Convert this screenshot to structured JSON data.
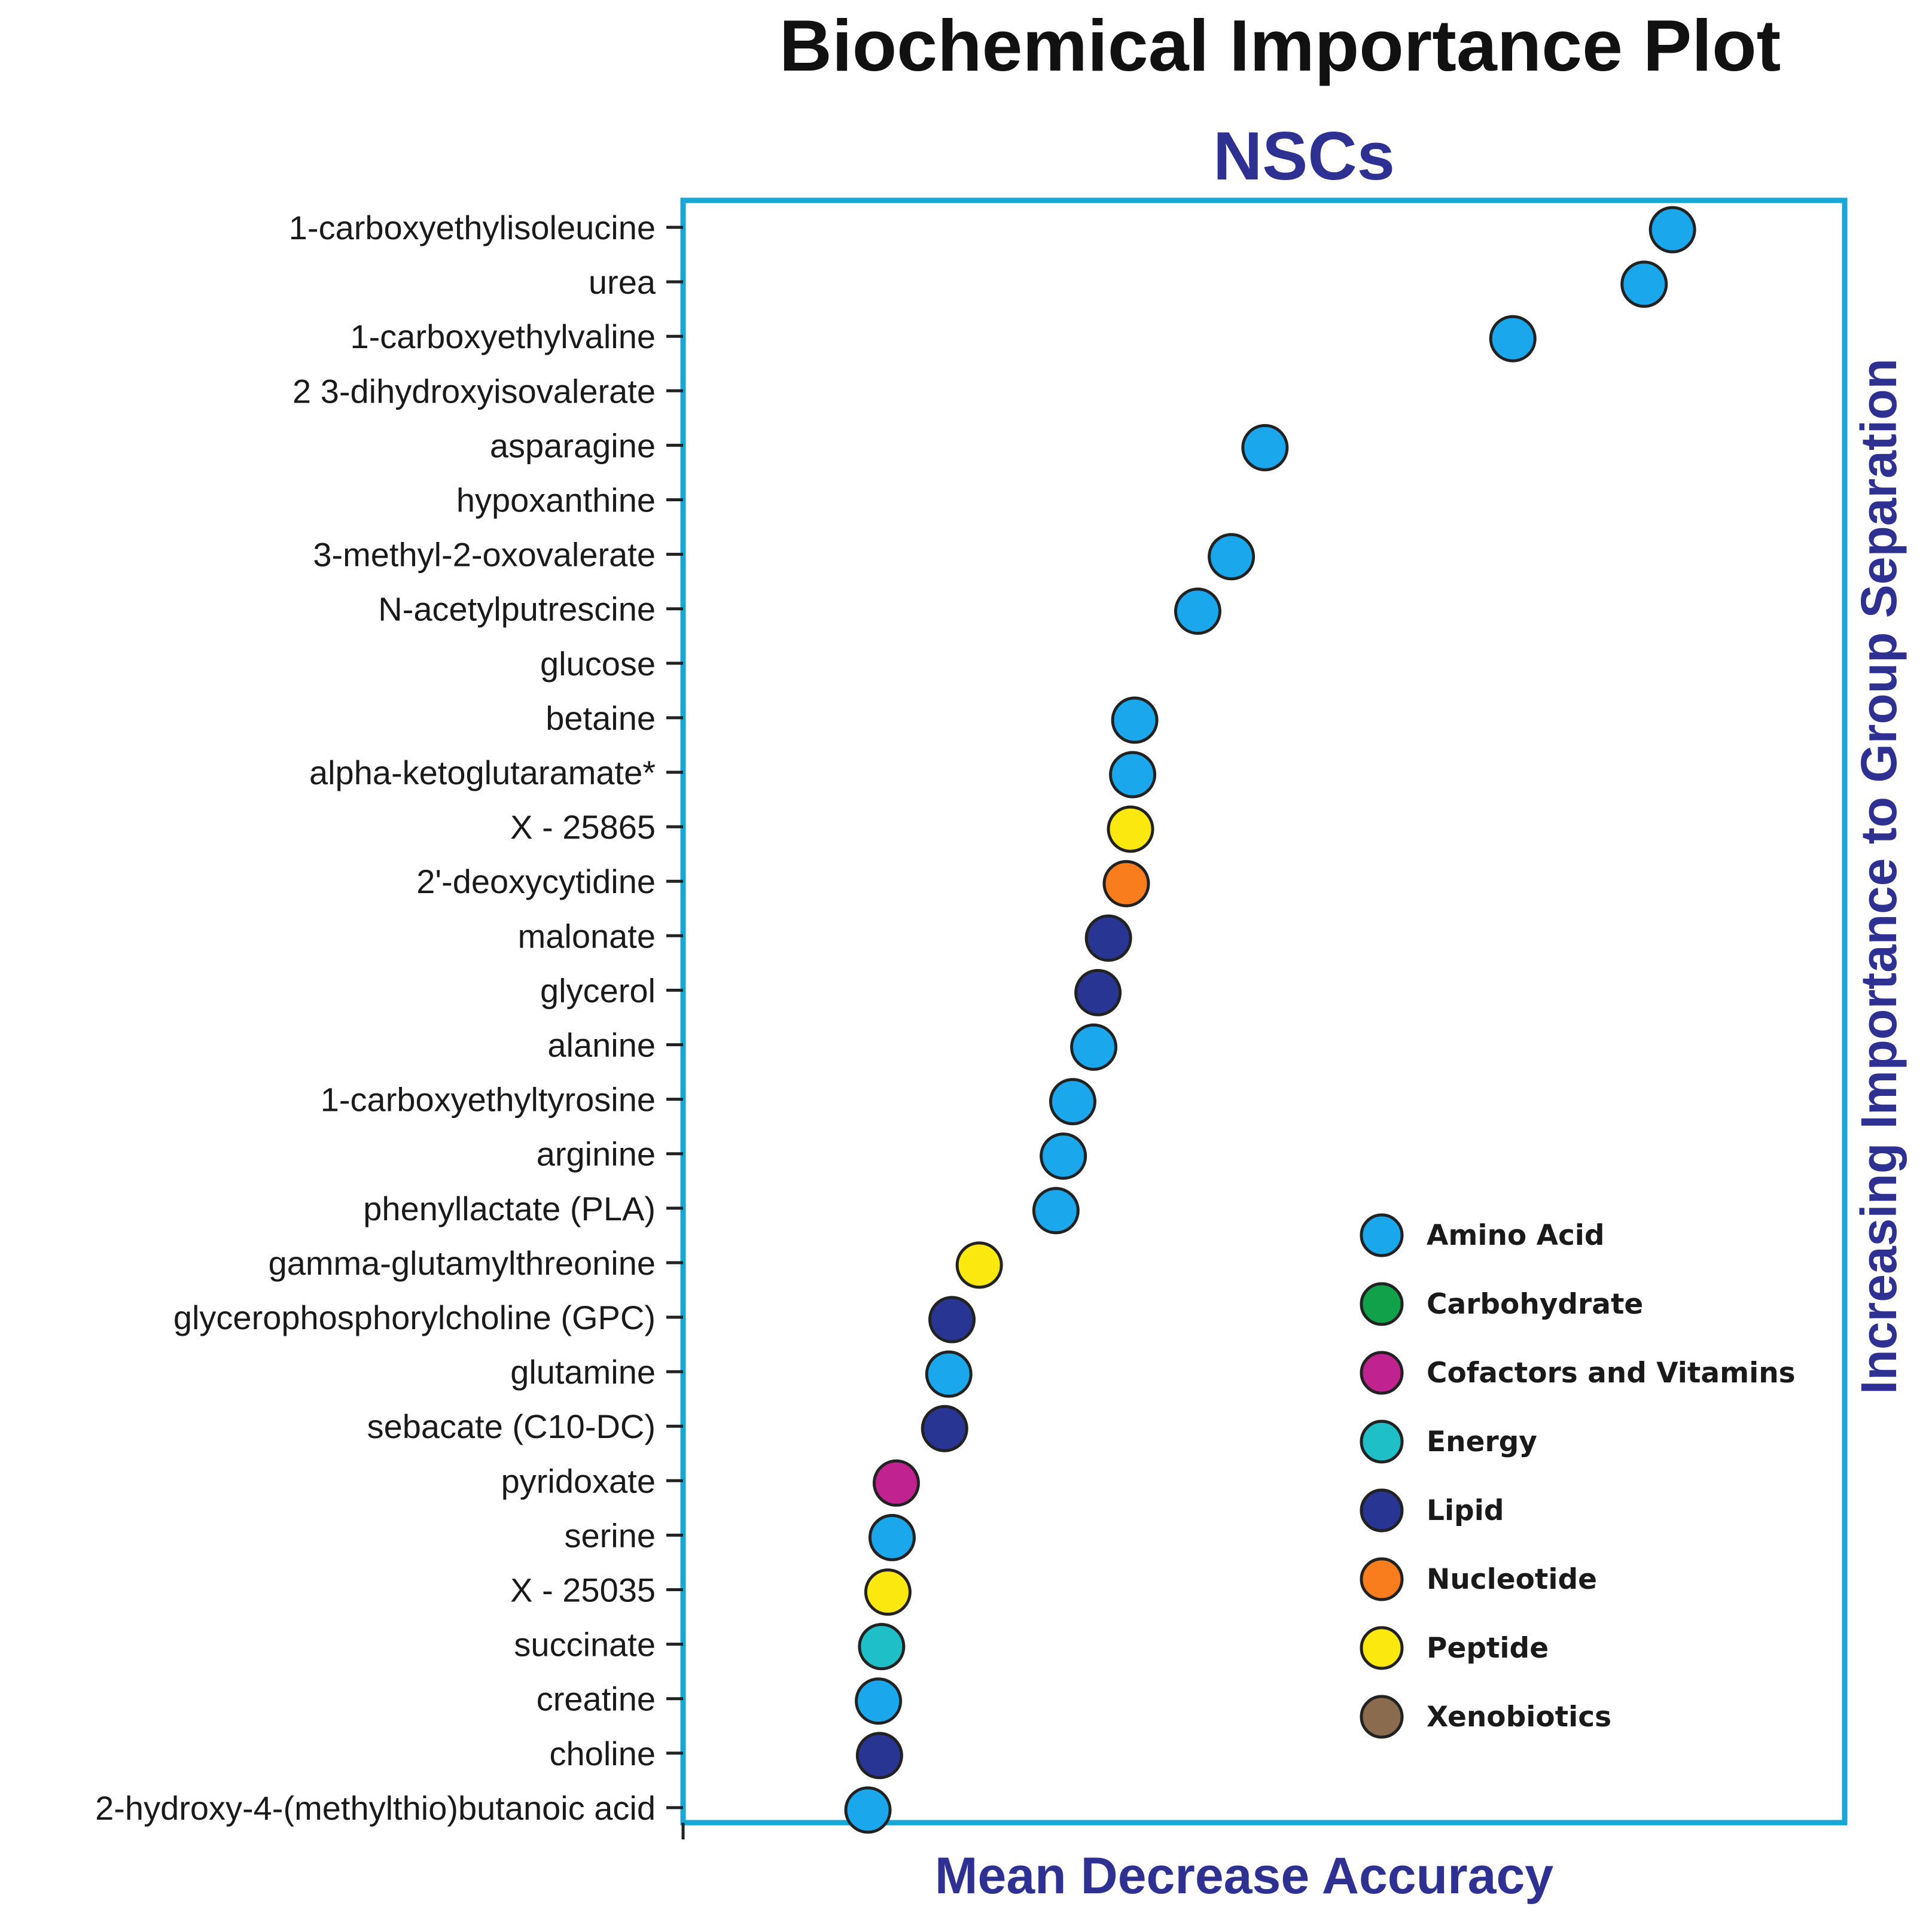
{
  "chart_data": {
    "type": "scatter",
    "title": "Biochemical Importance Plot",
    "subtitle": "NSCs",
    "xlabel": "Mean Decrease Accuracy",
    "ylabel": "Increasing Importance to Group Separation",
    "xlim": [
      0,
      100
    ],
    "points": [
      {
        "label": "1-carboxyethylisoleucine",
        "value": 94.2,
        "category": "Amino Acid"
      },
      {
        "label": "urea",
        "value": 91.5,
        "category": "Amino Acid"
      },
      {
        "label": "1-carboxyethylvaline",
        "value": 79.0,
        "category": "Amino Acid"
      },
      {
        "label": "2 3-dihydroxyisovalerate",
        "value": null,
        "category": null
      },
      {
        "label": "asparagine",
        "value": 55.4,
        "category": "Amino Acid"
      },
      {
        "label": "hypoxanthine",
        "value": null,
        "category": null
      },
      {
        "label": "3-methyl-2-oxovalerate",
        "value": 52.2,
        "category": "Amino Acid"
      },
      {
        "label": "N-acetylputrescine",
        "value": 49.0,
        "category": "Amino Acid"
      },
      {
        "label": "glucose",
        "value": null,
        "category": null
      },
      {
        "label": "betaine",
        "value": 43.0,
        "category": "Amino Acid"
      },
      {
        "label": "alpha-ketoglutaramate*",
        "value": 42.8,
        "category": "Amino Acid"
      },
      {
        "label": "X - 25865",
        "value": 42.6,
        "category": "Peptide"
      },
      {
        "label": "2'-deoxycytidine",
        "value": 42.2,
        "category": "Nucleotide"
      },
      {
        "label": "malonate",
        "value": 40.5,
        "category": "Lipid"
      },
      {
        "label": "glycerol",
        "value": 39.5,
        "category": "Lipid"
      },
      {
        "label": "alanine",
        "value": 39.1,
        "category": "Amino Acid"
      },
      {
        "label": "1-carboxyethyltyrosine",
        "value": 37.1,
        "category": "Amino Acid"
      },
      {
        "label": "arginine",
        "value": 36.2,
        "category": "Amino Acid"
      },
      {
        "label": "phenyllactate (PLA)",
        "value": 35.5,
        "category": "Amino Acid"
      },
      {
        "label": "gamma-glutamylthreonine",
        "value": 28.2,
        "category": "Peptide"
      },
      {
        "label": "glycerophosphorylcholine (GPC)",
        "value": 25.6,
        "category": "Lipid"
      },
      {
        "label": "glutamine",
        "value": 25.3,
        "category": "Amino Acid"
      },
      {
        "label": "sebacate (C10-DC)",
        "value": 24.9,
        "category": "Lipid"
      },
      {
        "label": "pyridoxate",
        "value": 20.3,
        "category": "Cofactors and Vitamins"
      },
      {
        "label": "serine",
        "value": 19.9,
        "category": "Amino Acid"
      },
      {
        "label": "X - 25035",
        "value": 19.5,
        "category": "Peptide"
      },
      {
        "label": "succinate",
        "value": 18.9,
        "category": "Energy"
      },
      {
        "label": "creatine",
        "value": 18.6,
        "category": "Amino Acid"
      },
      {
        "label": "choline",
        "value": 18.7,
        "category": "Lipid"
      },
      {
        "label": "2-hydroxy-4-(methylthio)butanoic acid",
        "value": 17.6,
        "category": "Amino Acid"
      }
    ],
    "legend": {
      "position": "lower-right",
      "entries": [
        {
          "name": "Amino Acid",
          "color": "#1aa7ec"
        },
        {
          "name": "Carbohydrate",
          "color": "#11a14b"
        },
        {
          "name": "Cofactors and Vitamins",
          "color": "#c0228f"
        },
        {
          "name": "Energy",
          "color": "#1fbfc7"
        },
        {
          "name": "Lipid",
          "color": "#283593"
        },
        {
          "name": "Nucleotide",
          "color": "#f97d1c"
        },
        {
          "name": "Peptide",
          "color": "#fbe80f"
        },
        {
          "name": "Xenobiotics",
          "color": "#8b6b4e"
        }
      ]
    },
    "colors": {
      "frame": "#1aa7d6",
      "title": "#111111",
      "accent_text": "#2e3192"
    }
  }
}
